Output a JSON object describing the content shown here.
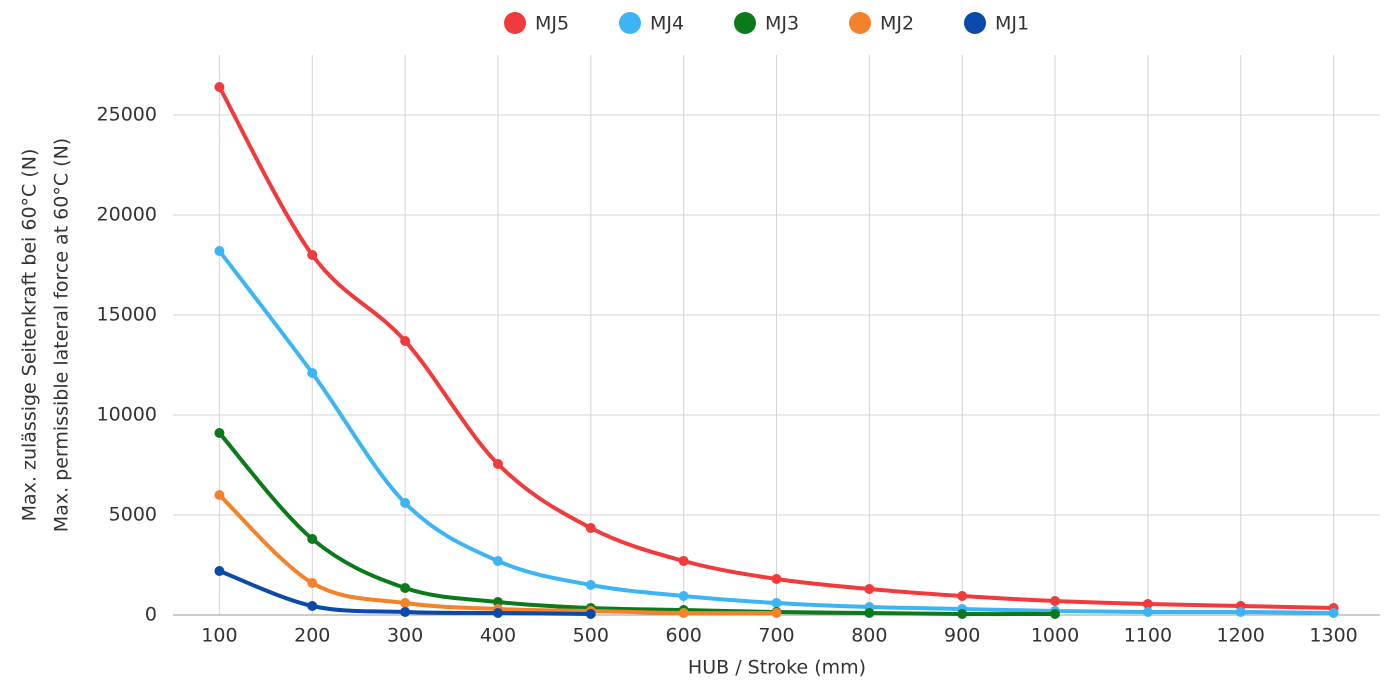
{
  "chart_data": {
    "type": "line",
    "x_label": "HUB / Stroke (mm)",
    "y_label": [
      "Max. zulässige Seitenkraft bei 60°C (N)",
      "Max. permissible lateral force at 60°C (N)"
    ],
    "x": [
      100,
      200,
      300,
      400,
      500,
      600,
      700,
      800,
      900,
      1000,
      1100,
      1200,
      1300
    ],
    "series": [
      {
        "name": "MJ5",
        "color": "#f03a3c",
        "values": [
          26400,
          18000,
          13700,
          7550,
          4350,
          2700,
          1800,
          1300,
          950,
          700,
          550,
          450,
          350
        ]
      },
      {
        "name": "MJ4",
        "color": "#3db5f5",
        "values": [
          18200,
          12100,
          5600,
          2700,
          1500,
          950,
          600,
          400,
          300,
          200,
          150,
          150,
          100
        ]
      },
      {
        "name": "MJ3",
        "color": "#0b7a1a",
        "values": [
          9100,
          3800,
          1350,
          650,
          350,
          250,
          150,
          100,
          50,
          50,
          null,
          null,
          null
        ]
      },
      {
        "name": "MJ2",
        "color": "#f5822a",
        "values": [
          6000,
          1600,
          600,
          300,
          200,
          100,
          100,
          null,
          null,
          null,
          null,
          null,
          null
        ]
      },
      {
        "name": "MJ1",
        "color": "#0a4aa8",
        "values": [
          2200,
          450,
          150,
          100,
          50,
          null,
          null,
          null,
          null,
          null,
          null,
          null,
          null
        ]
      }
    ],
    "xlim": [
      50,
      1350
    ],
    "xticks": [
      100,
      200,
      300,
      400,
      500,
      600,
      700,
      800,
      900,
      1000,
      1100,
      1200,
      1300
    ],
    "ylim": [
      0,
      28000
    ],
    "yticks": [
      0,
      5000,
      10000,
      15000,
      20000,
      25000
    ],
    "grid": true,
    "legend": "top"
  }
}
